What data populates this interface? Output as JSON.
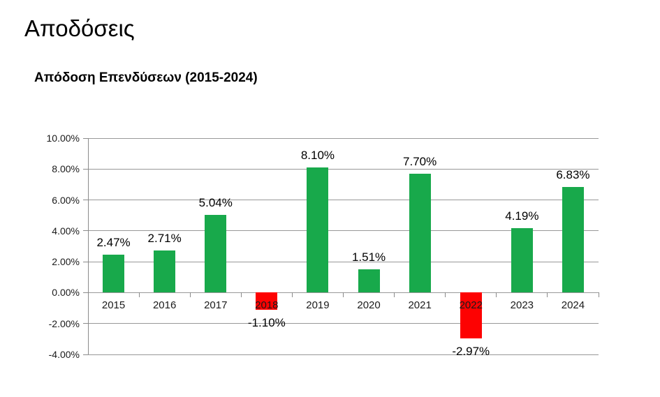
{
  "page": {
    "title": "Αποδόσεις"
  },
  "chart_data": {
    "type": "bar",
    "title": "Απόδοση Επενδύσεων (2015-2024)",
    "categories": [
      "2015",
      "2016",
      "2017",
      "2018",
      "2019",
      "2020",
      "2021",
      "2022",
      "2023",
      "2024"
    ],
    "values": [
      2.47,
      2.71,
      5.04,
      -1.1,
      8.1,
      1.51,
      7.7,
      -2.97,
      4.19,
      6.83
    ],
    "value_labels": [
      "2.47%",
      "2.71%",
      "5.04%",
      "-1.10%",
      "8.10%",
      "1.51%",
      "7.70%",
      "-2.97%",
      "4.19%",
      "6.83%"
    ],
    "xlabel": "",
    "ylabel": "",
    "ylim": [
      -4,
      10
    ],
    "ytick_step": 2,
    "ytick_labels": [
      "10.00%",
      "8.00%",
      "6.00%",
      "4.00%",
      "2.00%",
      "0.00%",
      "-2.00%",
      "-4.00%"
    ],
    "grid": true,
    "legend": "none",
    "colors": {
      "positive_bar": "#18a94b",
      "negative_bar": "#fd0202",
      "gridline": "#989898",
      "axis": "#8a8a8a",
      "text": "#1a1a1a"
    }
  }
}
